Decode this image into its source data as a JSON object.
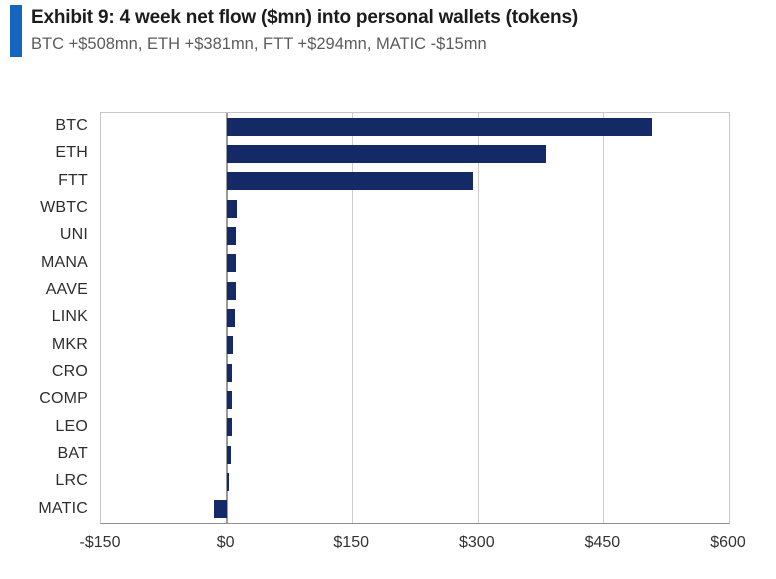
{
  "colors": {
    "accent_bar": "#1565c0",
    "bar_fill": "#132a66",
    "gridline": "#cdcdcd",
    "zero_line": "#9a9a9a",
    "plot_border": "#c6c6c6",
    "axis_line": "#8f8f8f"
  },
  "chart_data": {
    "type": "bar",
    "orientation": "horizontal",
    "title": "Exhibit 9: 4 week net flow ($mn) into personal wallets (tokens)",
    "subtitle": "BTC +$508mn, ETH +$381mn, FTT +$294mn, MATIC -$15mn",
    "categories": [
      "BTC",
      "ETH",
      "FTT",
      "WBTC",
      "UNI",
      "MANA",
      "AAVE",
      "LINK",
      "MKR",
      "CRO",
      "COMP",
      "LEO",
      "BAT",
      "LRC",
      "MATIC"
    ],
    "values": [
      508,
      381,
      294,
      12,
      11,
      11,
      11,
      10,
      8,
      7,
      6,
      6,
      5,
      3,
      -15
    ],
    "xlim": [
      -150,
      600
    ],
    "xticks": [
      -150,
      0,
      150,
      300,
      450,
      600
    ],
    "xtick_labels": [
      "-$150",
      "$0",
      "$150",
      "$300",
      "$450",
      "$600"
    ],
    "xlabel": "",
    "ylabel": "",
    "grid": true,
    "legend": false
  }
}
